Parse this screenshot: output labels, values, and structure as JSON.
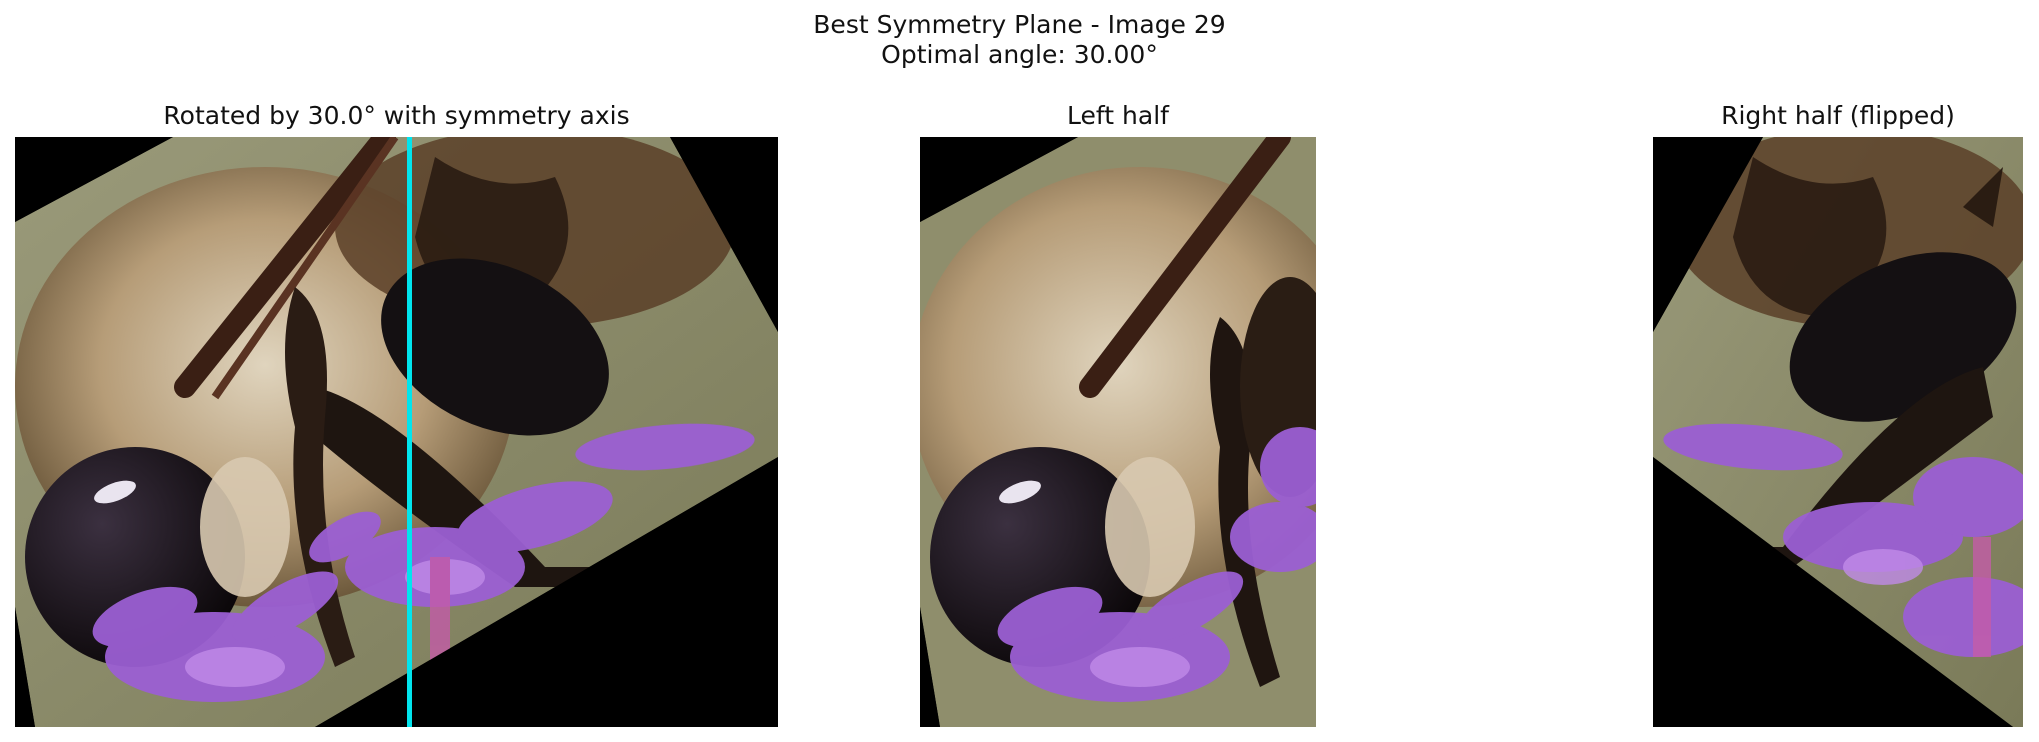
{
  "figure": {
    "title_line1": "Best Symmetry Plane - Image 29",
    "title_line2": "Optimal angle: 30.00°"
  },
  "panels": [
    {
      "title": "Rotated by 30.0° with symmetry axis",
      "image_icon": "bee-on-flower-rotated-icon",
      "axis_color": "#00e5ee"
    },
    {
      "title": "Left half",
      "image_icon": "bee-left-half-icon"
    },
    {
      "title": "Right half (flipped)",
      "image_icon": "bee-right-half-flipped-icon"
    }
  ],
  "colors": {
    "background": "#ffffff",
    "bokeh_olive": "#8e8d69",
    "fur_tan": "#c9b79a",
    "dark_bee": "#1c1512",
    "flower_purple": "#9b5fd3",
    "symmetry_axis": "#00e5ee"
  }
}
